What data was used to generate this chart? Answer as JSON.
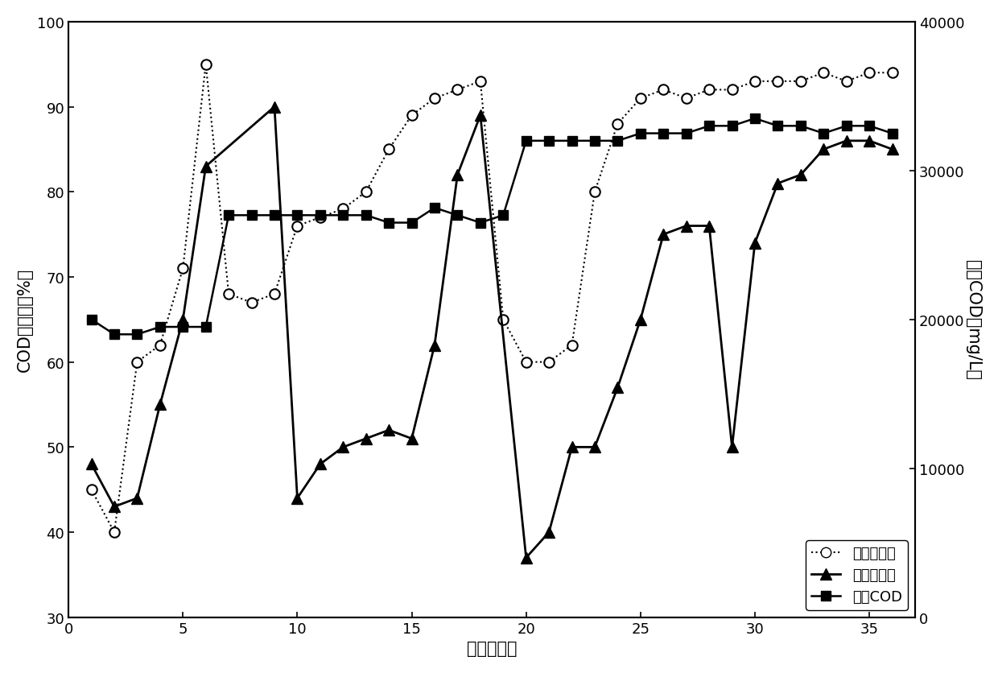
{
  "xlabel": "时间（天）",
  "ylabel_left": "COD去除率（%）",
  "ylabel_right": "进水COD（mg/L）",
  "xlim": [
    0,
    37
  ],
  "ylim_left": [
    30,
    100
  ],
  "ylim_right": [
    0,
    40000
  ],
  "xticks": [
    0,
    5,
    10,
    15,
    20,
    25,
    30,
    35
  ],
  "yticks_left": [
    30,
    40,
    50,
    60,
    70,
    80,
    90,
    100
  ],
  "yticks_right": [
    0,
    10000,
    20000,
    30000,
    40000
  ],
  "series1_label": "本发明装置",
  "series1_x": [
    1,
    2,
    3,
    4,
    5,
    6,
    7,
    8,
    9,
    10,
    11,
    12,
    13,
    14,
    15,
    16,
    17,
    18,
    19,
    20,
    21,
    22,
    23,
    24,
    25,
    26,
    27,
    28,
    29,
    30,
    31,
    32,
    33,
    34,
    35,
    36
  ],
  "series1_y": [
    45,
    40,
    60,
    62,
    71,
    95,
    68,
    67,
    68,
    76,
    77,
    78,
    80,
    85,
    89,
    91,
    92,
    93,
    65,
    60,
    60,
    62,
    80,
    88,
    91,
    92,
    91,
    92,
    92,
    93,
    93,
    93,
    94,
    93,
    94,
    94
  ],
  "series2_label": "对照反应器",
  "series2_x": [
    1,
    2,
    3,
    4,
    5,
    6,
    9,
    10,
    11,
    12,
    13,
    14,
    15,
    16,
    17,
    18,
    20,
    21,
    22,
    23,
    24,
    25,
    26,
    27,
    28,
    29,
    30,
    31,
    32,
    33,
    34,
    35,
    36
  ],
  "series2_y": [
    48,
    43,
    44,
    55,
    65,
    83,
    90,
    44,
    48,
    50,
    51,
    52,
    51,
    62,
    82,
    89,
    37,
    40,
    50,
    50,
    57,
    65,
    75,
    76,
    76,
    50,
    74,
    81,
    82,
    85,
    86,
    86,
    85
  ],
  "series3_label": "进水COD",
  "series3_x": [
    1,
    2,
    3,
    4,
    5,
    6,
    7,
    8,
    9,
    10,
    11,
    12,
    13,
    14,
    15,
    16,
    17,
    18,
    19,
    20,
    21,
    22,
    23,
    24,
    25,
    26,
    27,
    28,
    29,
    30,
    31,
    32,
    33,
    34,
    35,
    36
  ],
  "series3_y": [
    20000,
    19000,
    19000,
    19500,
    19500,
    19500,
    27000,
    27000,
    27000,
    27000,
    27000,
    27000,
    27000,
    26500,
    26500,
    27500,
    27000,
    26500,
    27000,
    32000,
    32000,
    32000,
    32000,
    32000,
    32500,
    32500,
    32500,
    33000,
    33000,
    33500,
    33000,
    33000,
    32500,
    33000,
    33000,
    32500
  ],
  "bg_color": "#ffffff",
  "fontsize_labels": 15,
  "fontsize_ticks": 13,
  "fontsize_legend": 13
}
